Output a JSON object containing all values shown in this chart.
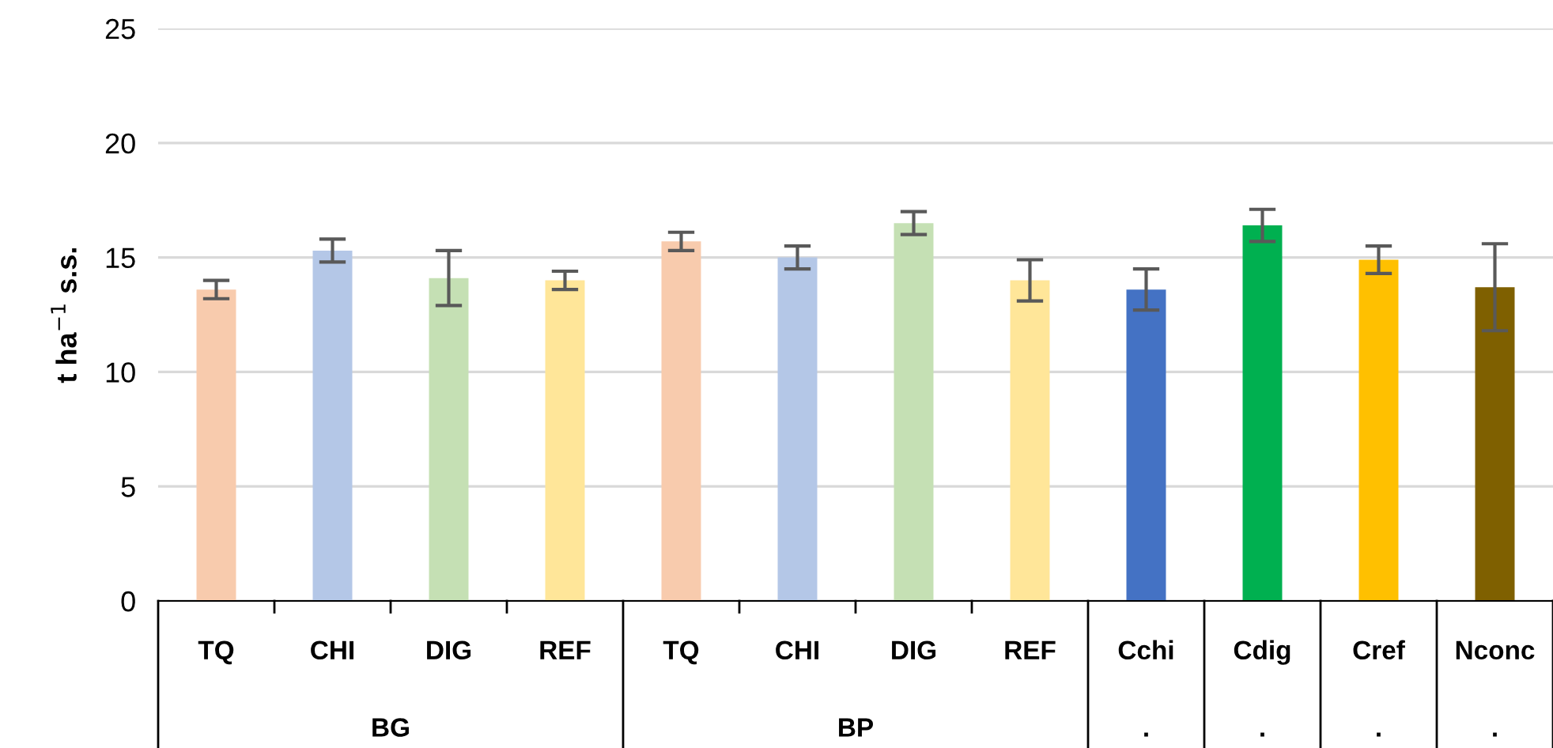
{
  "chart_data": {
    "type": "bar",
    "ylabel": "t ha$^{−1}$ s.s.",
    "categories": [
      "TQ",
      "CHI",
      "DIG",
      "REF",
      "TQ",
      "CHI",
      "DIG",
      "REF",
      "Cchi",
      "Cdig",
      "Cref",
      "Nconc"
    ],
    "values": [
      13.6,
      15.3,
      14.1,
      14.0,
      15.7,
      15.0,
      16.5,
      14.0,
      13.6,
      16.4,
      14.9,
      13.7
    ],
    "errors": [
      0.4,
      0.5,
      1.2,
      0.4,
      0.4,
      0.5,
      0.5,
      0.9,
      0.9,
      0.7,
      0.6,
      1.9
    ],
    "colors": [
      "#f8cbad",
      "#b4c7e7",
      "#c5e0b4",
      "#ffe699",
      "#f8cbad",
      "#b4c7e7",
      "#c5e0b4",
      "#ffe699",
      "#4472c4",
      "#00b050",
      "#ffc000",
      "#7f6000"
    ],
    "annotations": [
      "BG",
      "BP",
      ".",
      ".",
      ".",
      "."
    ],
    "ylim": [
      0,
      25
    ],
    "yticks": [
      0,
      5,
      10,
      15,
      20,
      25
    ],
    "grid": "y",
    "legend": false
  }
}
